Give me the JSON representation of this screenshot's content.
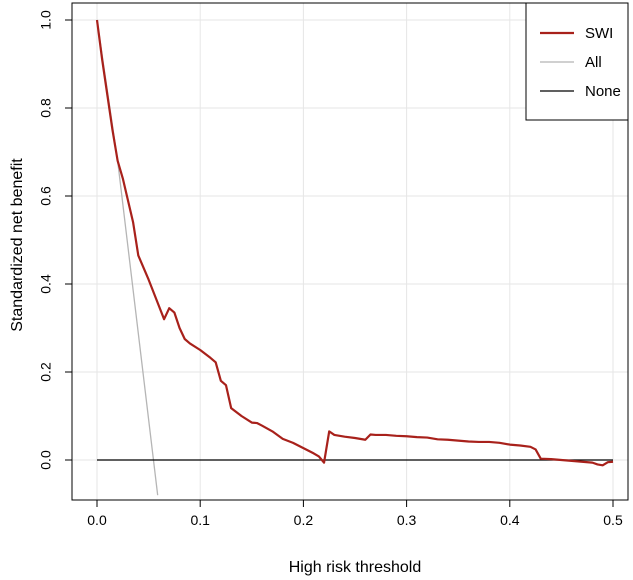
{
  "chart_data": {
    "type": "line",
    "title": "",
    "xlabel": "High risk threshold",
    "ylabel": "Standardized net benefit",
    "xlim": [
      0,
      0.5
    ],
    "ylim": [
      -0.08,
      1.0
    ],
    "grid": true,
    "legend_position": "top-right",
    "x_ticks": [
      0.0,
      0.1,
      0.2,
      0.3,
      0.4,
      0.5
    ],
    "x_tick_labels": [
      "0.0",
      "0.1",
      "0.2",
      "0.3",
      "0.4",
      "0.5"
    ],
    "y_ticks": [
      0.0,
      0.2,
      0.4,
      0.6,
      0.8,
      1.0
    ],
    "y_tick_labels": [
      "0.0",
      "0.2",
      "0.4",
      "0.6",
      "0.8",
      "1.0"
    ],
    "series": [
      {
        "name": "SWI",
        "color": "#a8211b",
        "x": [
          0.0,
          0.005,
          0.01,
          0.015,
          0.02,
          0.025,
          0.03,
          0.035,
          0.04,
          0.05,
          0.06,
          0.065,
          0.07,
          0.075,
          0.08,
          0.085,
          0.09,
          0.1,
          0.11,
          0.115,
          0.12,
          0.125,
          0.13,
          0.14,
          0.15,
          0.155,
          0.16,
          0.17,
          0.18,
          0.19,
          0.2,
          0.21,
          0.215,
          0.22,
          0.225,
          0.23,
          0.24,
          0.25,
          0.26,
          0.265,
          0.27,
          0.28,
          0.29,
          0.3,
          0.31,
          0.32,
          0.33,
          0.34,
          0.35,
          0.36,
          0.37,
          0.38,
          0.39,
          0.4,
          0.41,
          0.42,
          0.425,
          0.43,
          0.44,
          0.45,
          0.46,
          0.47,
          0.48,
          0.485,
          0.49,
          0.495,
          0.5
        ],
        "y": [
          1.0,
          0.91,
          0.83,
          0.75,
          0.68,
          0.64,
          0.59,
          0.54,
          0.465,
          0.41,
          0.35,
          0.32,
          0.345,
          0.335,
          0.3,
          0.275,
          0.265,
          0.25,
          0.232,
          0.222,
          0.18,
          0.17,
          0.118,
          0.1,
          0.085,
          0.084,
          0.078,
          0.065,
          0.048,
          0.039,
          0.027,
          0.015,
          0.008,
          -0.006,
          0.065,
          0.057,
          0.053,
          0.05,
          0.046,
          0.058,
          0.057,
          0.057,
          0.055,
          0.054,
          0.052,
          0.051,
          0.047,
          0.046,
          0.044,
          0.042,
          0.041,
          0.041,
          0.039,
          0.035,
          0.033,
          0.03,
          0.024,
          0.003,
          0.002,
          0.0,
          -0.002,
          -0.004,
          -0.006,
          -0.01,
          -0.012,
          -0.005,
          -0.004
        ]
      },
      {
        "name": "All",
        "color": "#b5b5b5",
        "x": [
          0.0,
          0.02,
          0.0588
        ],
        "y": [
          1.0,
          0.68,
          -0.08
        ]
      },
      {
        "name": "None",
        "color": "#000000",
        "x": [
          0.0,
          0.5
        ],
        "y": [
          0.0,
          0.0
        ]
      }
    ]
  }
}
